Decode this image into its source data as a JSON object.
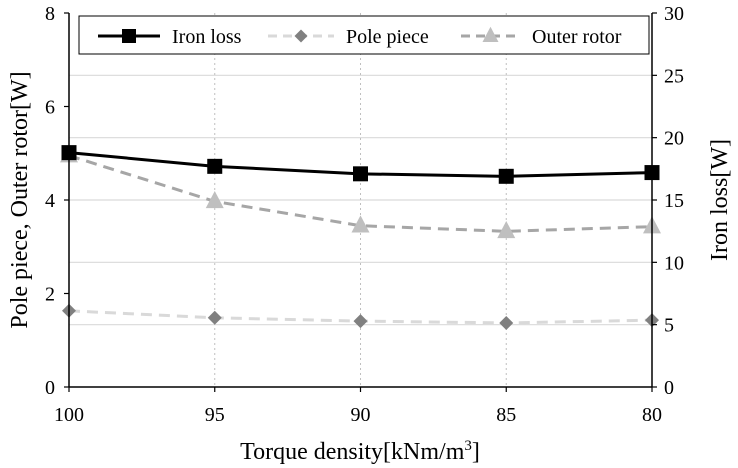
{
  "chart_data": {
    "type": "line",
    "x": [
      100,
      95,
      90,
      85,
      80
    ],
    "x_tick_labels": [
      "100",
      "95",
      "90",
      "85",
      "80"
    ],
    "x_reversed": true,
    "xlabel": "Torque density[kNm/m",
    "xlabel_sup": "3",
    "xlabel_end": "]",
    "ylabel_left": "Pole piece, Outer rotor[W]",
    "ylabel_right": "Iron loss[W]",
    "ylim_left": [
      0,
      8
    ],
    "ylim_right": [
      0,
      30
    ],
    "yticks_left": [
      "0",
      "2",
      "4",
      "6",
      "8"
    ],
    "yticks_right": [
      "0",
      "5",
      "10",
      "15",
      "20",
      "25",
      "30"
    ],
    "grid": "horizontal (right axis) and vertical dotted",
    "legend_position": "top",
    "series": [
      {
        "name": "Iron loss",
        "axis": "right",
        "values": [
          18.8,
          17.7,
          17.1,
          16.9,
          17.2
        ],
        "color": "#000000",
        "marker": "square",
        "line_style": "solid"
      },
      {
        "name": "Pole piece",
        "axis": "left",
        "values": [
          1.63,
          1.48,
          1.41,
          1.37,
          1.43
        ],
        "color": "#d9d9d9",
        "marker_color": "#808080",
        "marker": "diamond",
        "line_style": "dashed"
      },
      {
        "name": "Outer rotor",
        "axis": "left",
        "values": [
          4.95,
          3.97,
          3.45,
          3.33,
          3.43
        ],
        "color": "#a6a6a6",
        "marker_color": "#bfbfbf",
        "marker": "triangle",
        "line_style": "dashed"
      }
    ]
  }
}
